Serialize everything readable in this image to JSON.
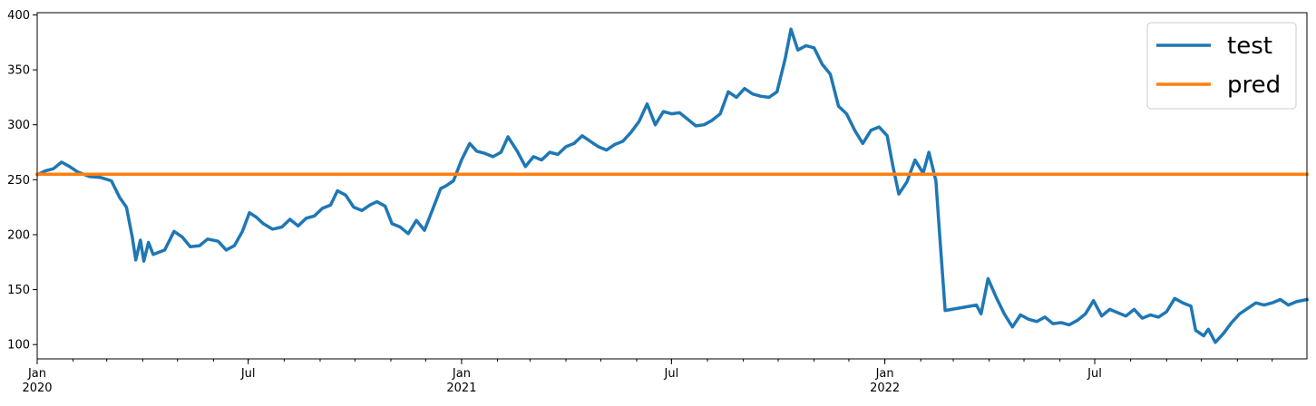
{
  "chart_data": {
    "type": "line",
    "title": "",
    "xlabel": "",
    "ylabel": "",
    "ylim": [
      87,
      402
    ],
    "xlim": [
      "2020-01-01",
      "2022-12-31"
    ],
    "grid": false,
    "legend_position": "top-right",
    "y_ticks": [
      100,
      150,
      200,
      250,
      300,
      350,
      400
    ],
    "x_ticks": [
      {
        "date": "2020-01-01",
        "line1": "Jan",
        "line2": "2020"
      },
      {
        "date": "2020-07-01",
        "line1": "Jul",
        "line2": ""
      },
      {
        "date": "2021-01-01",
        "line1": "Jan",
        "line2": "2021"
      },
      {
        "date": "2021-07-01",
        "line1": "Jul",
        "line2": ""
      },
      {
        "date": "2022-01-01",
        "line1": "Jan",
        "line2": "2022"
      },
      {
        "date": "2022-07-01",
        "line1": "Jul",
        "line2": ""
      }
    ],
    "series": [
      {
        "name": "test",
        "color": "#1f77b4",
        "points": [
          [
            "2020-01-02",
            255
          ],
          [
            "2020-01-08",
            258
          ],
          [
            "2020-01-15",
            260
          ],
          [
            "2020-01-22",
            266
          ],
          [
            "2020-01-29",
            262
          ],
          [
            "2020-02-05",
            257
          ],
          [
            "2020-02-15",
            253
          ],
          [
            "2020-02-25",
            252
          ],
          [
            "2020-03-05",
            249
          ],
          [
            "2020-03-12",
            234
          ],
          [
            "2020-03-18",
            225
          ],
          [
            "2020-03-23",
            198
          ],
          [
            "2020-03-26",
            177
          ],
          [
            "2020-03-30",
            195
          ],
          [
            "2020-04-02",
            176
          ],
          [
            "2020-04-06",
            193
          ],
          [
            "2020-04-10",
            182
          ],
          [
            "2020-04-20",
            186
          ],
          [
            "2020-04-28",
            203
          ],
          [
            "2020-05-05",
            198
          ],
          [
            "2020-05-12",
            189
          ],
          [
            "2020-05-20",
            190
          ],
          [
            "2020-05-27",
            196
          ],
          [
            "2020-06-05",
            194
          ],
          [
            "2020-06-12",
            186
          ],
          [
            "2020-06-19",
            190
          ],
          [
            "2020-06-26",
            203
          ],
          [
            "2020-07-02",
            220
          ],
          [
            "2020-07-08",
            216
          ],
          [
            "2020-07-14",
            210
          ],
          [
            "2020-07-22",
            205
          ],
          [
            "2020-07-30",
            207
          ],
          [
            "2020-08-06",
            214
          ],
          [
            "2020-08-13",
            208
          ],
          [
            "2020-08-20",
            215
          ],
          [
            "2020-08-27",
            217
          ],
          [
            "2020-09-03",
            224
          ],
          [
            "2020-09-10",
            227
          ],
          [
            "2020-09-16",
            240
          ],
          [
            "2020-09-23",
            236
          ],
          [
            "2020-09-30",
            225
          ],
          [
            "2020-10-07",
            222
          ],
          [
            "2020-10-14",
            227
          ],
          [
            "2020-10-20",
            230
          ],
          [
            "2020-10-27",
            226
          ],
          [
            "2020-11-02",
            210
          ],
          [
            "2020-11-09",
            207
          ],
          [
            "2020-11-16",
            201
          ],
          [
            "2020-11-23",
            213
          ],
          [
            "2020-11-30",
            204
          ],
          [
            "2020-12-07",
            223
          ],
          [
            "2020-12-14",
            242
          ],
          [
            "2020-12-18",
            244
          ],
          [
            "2020-12-25",
            249
          ],
          [
            "2021-01-01",
            268
          ],
          [
            "2021-01-08",
            283
          ],
          [
            "2021-01-14",
            276
          ],
          [
            "2021-01-21",
            274
          ],
          [
            "2021-01-28",
            271
          ],
          [
            "2021-02-04",
            275
          ],
          [
            "2021-02-10",
            289
          ],
          [
            "2021-02-18",
            276
          ],
          [
            "2021-02-25",
            262
          ],
          [
            "2021-03-04",
            271
          ],
          [
            "2021-03-11",
            268
          ],
          [
            "2021-03-18",
            275
          ],
          [
            "2021-03-25",
            273
          ],
          [
            "2021-04-01",
            280
          ],
          [
            "2021-04-08",
            283
          ],
          [
            "2021-04-15",
            290
          ],
          [
            "2021-04-22",
            285
          ],
          [
            "2021-04-29",
            280
          ],
          [
            "2021-05-06",
            277
          ],
          [
            "2021-05-13",
            282
          ],
          [
            "2021-05-20",
            285
          ],
          [
            "2021-05-27",
            293
          ],
          [
            "2021-06-03",
            303
          ],
          [
            "2021-06-10",
            319
          ],
          [
            "2021-06-17",
            300
          ],
          [
            "2021-06-24",
            312
          ],
          [
            "2021-07-01",
            310
          ],
          [
            "2021-07-08",
            311
          ],
          [
            "2021-07-15",
            305
          ],
          [
            "2021-07-22",
            299
          ],
          [
            "2021-07-29",
            300
          ],
          [
            "2021-08-05",
            304
          ],
          [
            "2021-08-12",
            310
          ],
          [
            "2021-08-19",
            330
          ],
          [
            "2021-08-26",
            325
          ],
          [
            "2021-09-02",
            333
          ],
          [
            "2021-09-09",
            328
          ],
          [
            "2021-09-16",
            326
          ],
          [
            "2021-09-23",
            325
          ],
          [
            "2021-09-30",
            330
          ],
          [
            "2021-10-07",
            360
          ],
          [
            "2021-10-12",
            387
          ],
          [
            "2021-10-18",
            368
          ],
          [
            "2021-10-25",
            372
          ],
          [
            "2021-11-01",
            370
          ],
          [
            "2021-11-08",
            355
          ],
          [
            "2021-11-15",
            346
          ],
          [
            "2021-11-22",
            317
          ],
          [
            "2021-11-29",
            310
          ],
          [
            "2021-12-06",
            295
          ],
          [
            "2021-12-13",
            283
          ],
          [
            "2021-12-20",
            295
          ],
          [
            "2021-12-27",
            298
          ],
          [
            "2022-01-03",
            290
          ],
          [
            "2022-01-08",
            262
          ],
          [
            "2022-01-13",
            237
          ],
          [
            "2022-01-20",
            248
          ],
          [
            "2022-01-27",
            268
          ],
          [
            "2022-02-03",
            256
          ],
          [
            "2022-02-08",
            275
          ],
          [
            "2022-02-14",
            249
          ],
          [
            "2022-02-17",
            204
          ],
          [
            "2022-02-22",
            131
          ],
          [
            "2022-03-21",
            136
          ],
          [
            "2022-03-25",
            128
          ],
          [
            "2022-03-31",
            160
          ],
          [
            "2022-04-07",
            143
          ],
          [
            "2022-04-14",
            128
          ],
          [
            "2022-04-21",
            116
          ],
          [
            "2022-04-28",
            127
          ],
          [
            "2022-05-05",
            123
          ],
          [
            "2022-05-12",
            121
          ],
          [
            "2022-05-19",
            125
          ],
          [
            "2022-05-26",
            119
          ],
          [
            "2022-06-02",
            120
          ],
          [
            "2022-06-09",
            118
          ],
          [
            "2022-06-16",
            122
          ],
          [
            "2022-06-23",
            128
          ],
          [
            "2022-06-30",
            140
          ],
          [
            "2022-07-07",
            126
          ],
          [
            "2022-07-14",
            132
          ],
          [
            "2022-07-21",
            129
          ],
          [
            "2022-07-28",
            126
          ],
          [
            "2022-08-04",
            132
          ],
          [
            "2022-08-11",
            124
          ],
          [
            "2022-08-18",
            127
          ],
          [
            "2022-08-25",
            125
          ],
          [
            "2022-09-01",
            130
          ],
          [
            "2022-09-08",
            142
          ],
          [
            "2022-09-15",
            138
          ],
          [
            "2022-09-22",
            135
          ],
          [
            "2022-09-26",
            113
          ],
          [
            "2022-10-03",
            108
          ],
          [
            "2022-10-07",
            114
          ],
          [
            "2022-10-13",
            102
          ],
          [
            "2022-10-20",
            110
          ],
          [
            "2022-10-27",
            120
          ],
          [
            "2022-11-03",
            128
          ],
          [
            "2022-11-10",
            133
          ],
          [
            "2022-11-17",
            138
          ],
          [
            "2022-11-24",
            136
          ],
          [
            "2022-12-01",
            138
          ],
          [
            "2022-12-08",
            141
          ],
          [
            "2022-12-15",
            136
          ],
          [
            "2022-12-22",
            139
          ],
          [
            "2022-12-31",
            141
          ]
        ]
      },
      {
        "name": "pred",
        "color": "#ff7f0e",
        "points": [
          [
            "2020-01-01",
            255
          ],
          [
            "2022-12-31",
            255
          ]
        ]
      }
    ]
  }
}
